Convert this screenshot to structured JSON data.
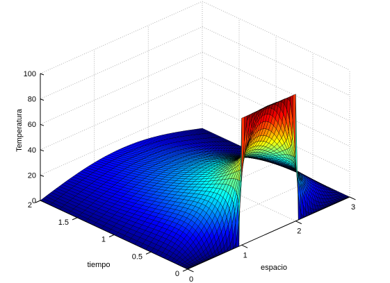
{
  "chart_data": {
    "type": "surface",
    "title": "",
    "xlabel": "espacio",
    "ylabel": "tiempo",
    "zlabel": "Temperatura",
    "xlim": [
      0,
      3
    ],
    "ylim": [
      0,
      2
    ],
    "zlim": [
      0,
      100
    ],
    "x_ticks": [
      "0",
      "1",
      "2",
      "3"
    ],
    "y_ticks": [
      "0",
      "0.5",
      "1",
      "1.5",
      "2"
    ],
    "z_ticks": [
      "0",
      "20",
      "40",
      "60",
      "80",
      "100"
    ],
    "grid": true,
    "colormap": "jet",
    "initial_condition": {
      "x_start": 1,
      "x_end": 2,
      "value": 100
    },
    "boundary_values": [
      0,
      0
    ],
    "profile_peak_at_y2": 25
  },
  "colors": {
    "background": "#ffffff",
    "axis": "#000000",
    "grid": "#b0b0b0",
    "mesh": "#000000"
  }
}
